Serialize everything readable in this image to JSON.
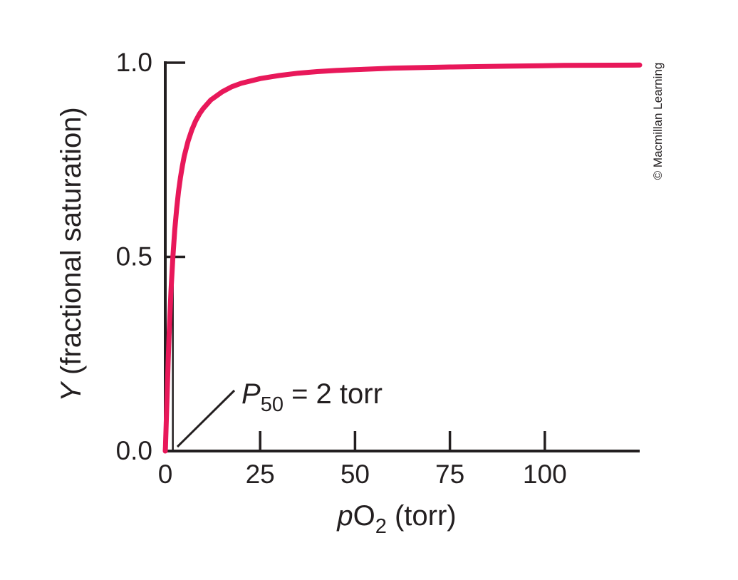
{
  "figure": {
    "credit": "© Macmillan Learning",
    "y_axis_label": {
      "italic": "Y",
      "rest": " (fractional saturation)"
    },
    "x_axis_label": {
      "italic": "p",
      "main": "O",
      "sub": "2",
      "rest": " (torr)"
    },
    "annotation": {
      "italic": "P",
      "sub": "50",
      "rest": " = 2 torr"
    },
    "colors": {
      "curve": "#E8185A",
      "axis": "#231F20",
      "credit": "#6D6E71",
      "background": "#FFFFFF"
    }
  },
  "chart_data": {
    "type": "line",
    "title": "",
    "xlabel": "pO2 (torr)",
    "ylabel": "Y (fractional saturation)",
    "xlim": [
      0,
      125
    ],
    "ylim": [
      0,
      1.0
    ],
    "grid": false,
    "x_ticks": [
      0,
      25,
      50,
      75,
      100
    ],
    "x_tick_labels": [
      "0",
      "25",
      "50",
      "75",
      "100"
    ],
    "y_ticks": [
      0.0,
      0.5,
      1.0
    ],
    "y_tick_labels": [
      "0.0",
      "0.5",
      "1.0"
    ],
    "p50_torr": 2,
    "p50_saturation": 0.5,
    "annotations": [
      {
        "text": "P50 = 2 torr",
        "points_to_x_torr": 2,
        "points_to_y": 0.0
      }
    ],
    "series": [
      {
        "name": "O2 fractional saturation curve",
        "color": "#E8185A",
        "points": [
          [
            0,
            0
          ],
          [
            0.05,
            0.01
          ],
          [
            0.1,
            0.023
          ],
          [
            0.25,
            0.069
          ],
          [
            0.5,
            0.15
          ],
          [
            0.75,
            0.227
          ],
          [
            1,
            0.296
          ],
          [
            1.5,
            0.411
          ],
          [
            2,
            0.5
          ],
          [
            2.5,
            0.569
          ],
          [
            3,
            0.624
          ],
          [
            3.5,
            0.668
          ],
          [
            4,
            0.704
          ],
          [
            4.5,
            0.734
          ],
          [
            5,
            0.759
          ],
          [
            6,
            0.798
          ],
          [
            7,
            0.827
          ],
          [
            8,
            0.85
          ],
          [
            9,
            0.868
          ],
          [
            10,
            0.882
          ],
          [
            12,
            0.904
          ],
          [
            15,
            0.925
          ],
          [
            17.5,
            0.938
          ],
          [
            20,
            0.947
          ],
          [
            25,
            0.959
          ],
          [
            30,
            0.967
          ],
          [
            35,
            0.973
          ],
          [
            40,
            0.977
          ],
          [
            45,
            0.98
          ],
          [
            50,
            0.982
          ],
          [
            60,
            0.986
          ],
          [
            75,
            0.989
          ],
          [
            90,
            0.991
          ],
          [
            105,
            0.993
          ],
          [
            125,
            0.994
          ]
        ]
      }
    ]
  }
}
